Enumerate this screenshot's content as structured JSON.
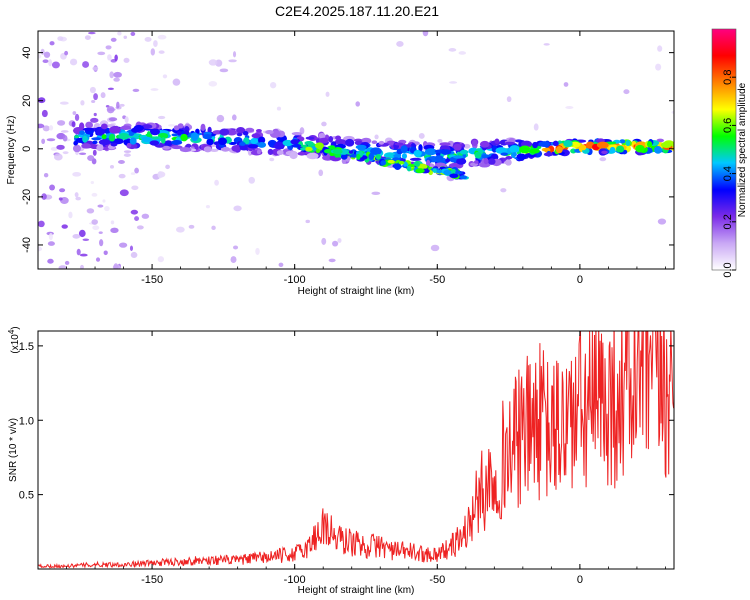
{
  "title": "C2E4.2025.187.11.20.E21",
  "chart_data": [
    {
      "type": "heatmap",
      "xlabel": "Height of straight line (km)",
      "ylabel": "Frequency (Hz)",
      "xlim": [
        -190,
        33
      ],
      "ylim": [
        -50,
        49
      ],
      "xticks": [
        -150,
        -100,
        -50,
        0
      ],
      "yticks": [
        -40,
        -20,
        0,
        20,
        40
      ],
      "grid": false,
      "colorbar": {
        "label": "Normalized spectral amplitude",
        "range": [
          0.0,
          1.0
        ],
        "ticks": [
          0.0,
          0.2,
          0.4,
          0.6,
          0.8
        ],
        "colormap": [
          "#ffffff",
          "#c9a8f5",
          "#7b2be8",
          "#0000ff",
          "#00c8ff",
          "#00ff00",
          "#ffff00",
          "#ff8000",
          "#ff0000",
          "#ff0080"
        ]
      },
      "ridge": {
        "description_points_x": [
          -175,
          -150,
          -125,
          -100,
          -75,
          -50,
          -25,
          -10,
          0,
          15,
          33
        ],
        "frequency_hz": [
          5,
          5,
          4,
          2,
          -1,
          -3,
          -1,
          0,
          1,
          1,
          1
        ],
        "peak_amplitude": [
          0.45,
          0.55,
          0.45,
          0.4,
          0.45,
          0.5,
          0.5,
          0.85,
          0.9,
          0.85,
          0.8
        ]
      }
    },
    {
      "type": "line",
      "xlabel": "Height of straight line (km)",
      "ylabel": "SNR (10 * v/v)",
      "scale_label": "(x10",
      "scale_exp": "4",
      "scale_close": ")",
      "xlim": [
        -190,
        33
      ],
      "ylim": [
        0,
        1.6
      ],
      "xticks": [
        -150,
        -100,
        -50,
        0
      ],
      "yticks": [
        0.5,
        1.0,
        1.5
      ],
      "yticklabels": [
        "0.5",
        "1.0",
        "1.5"
      ],
      "line_color": "#ee2222",
      "series": [
        {
          "x": [
            -190,
            -180,
            -170,
            -160,
            -150,
            -140,
            -130,
            -120,
            -110,
            -100,
            -95,
            -90,
            -85,
            -80,
            -75,
            -70,
            -65,
            -60,
            -55,
            -50,
            -45,
            -40,
            -35,
            -30,
            -25,
            -20,
            -15,
            -12,
            -10,
            -5,
            0,
            5,
            10,
            15,
            20,
            25,
            30,
            33
          ],
          "y": [
            0.02,
            0.02,
            0.03,
            0.03,
            0.04,
            0.05,
            0.06,
            0.06,
            0.08,
            0.1,
            0.15,
            0.3,
            0.2,
            0.18,
            0.15,
            0.16,
            0.12,
            0.12,
            0.1,
            0.1,
            0.15,
            0.25,
            0.5,
            0.65,
            0.8,
            0.9,
            1.0,
            0.95,
            0.9,
            1.0,
            1.05,
            1.1,
            1.15,
            1.2,
            1.3,
            1.3,
            1.25,
            1.2
          ]
        }
      ]
    }
  ]
}
